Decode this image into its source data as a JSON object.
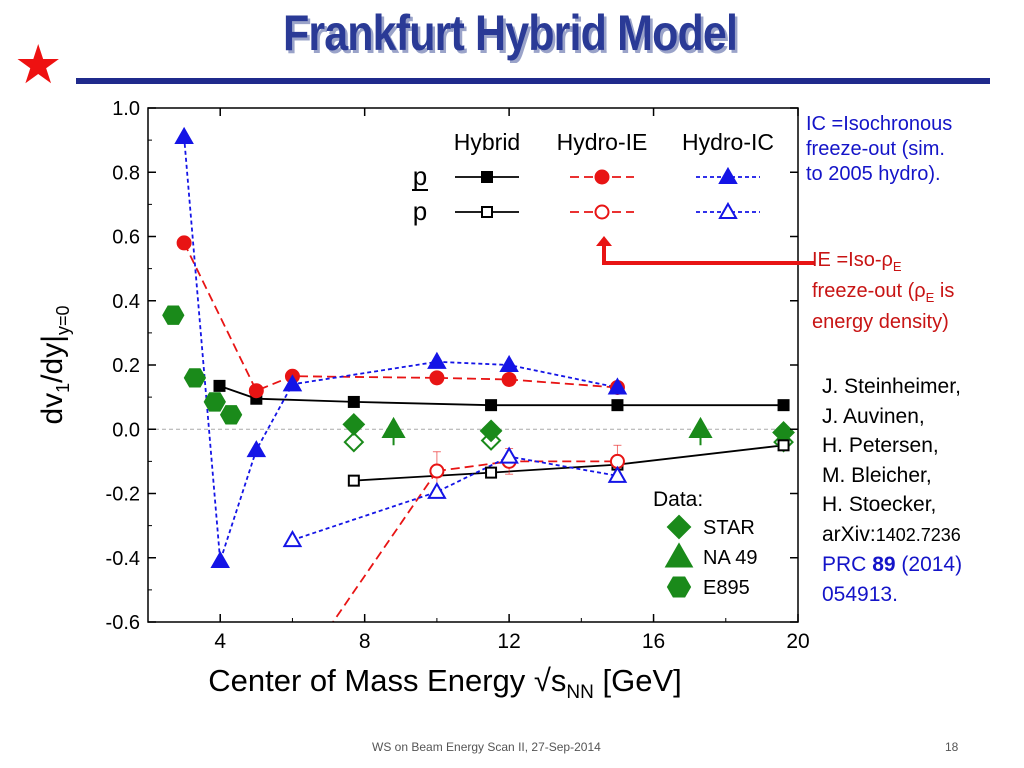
{
  "header": {
    "title": "Frankfurt Hybrid Model"
  },
  "colors": {
    "accent": "#2a3a96",
    "rule": "#1f2a8c",
    "star": "#ee1111",
    "hybrid": "#000000",
    "hydro_ie": "#e81414",
    "hydro_ic": "#1414e6",
    "data": "#1a8a1a"
  },
  "notes": {
    "ic": [
      "IC =Isochronous",
      "freeze-out (sim.",
      "to 2005 hydro)."
    ],
    "ie_line1": "IE =Iso-",
    "ie_rho": "ρ",
    "ie_sub": "E",
    "ie_line2_pre": "freeze-out (",
    "ie_line2_post": " is",
    "ie_line3": "energy density)"
  },
  "authors": {
    "names": [
      "J. Steinheimer,",
      "J. Auvinen,",
      "H. Petersen,",
      "M. Bleicher,",
      "H. Stoecker,"
    ],
    "arxiv_prefix": "arXiv:",
    "arxiv_id": "1402.7236",
    "journal": "PRC",
    "volume": "89",
    "year": "(2014)",
    "page": "054913."
  },
  "footer": {
    "conference": "WS on Beam Energy Scan II, 27-Sep-2014",
    "page_number": "18"
  },
  "chart_data": {
    "type": "scatter",
    "title": "",
    "xlabel": "Center of Mass Energy √s",
    "xlabel_sub": "NN",
    "xlabel_unit": " [GeV]",
    "ylabel": "dv",
    "ylabel_sub1": "1",
    "ylabel_mid": "/dy|",
    "ylabel_sub2": "y=0",
    "xlim": [
      2,
      20
    ],
    "ylim": [
      -0.6,
      1.0
    ],
    "xticks": [
      4,
      8,
      12,
      16,
      20
    ],
    "yticks": [
      1.0,
      0.8,
      0.6,
      0.4,
      0.2,
      0.0,
      -0.2,
      -0.4,
      -0.6
    ],
    "ytick_labels": [
      "1.0",
      "0.8",
      "0.6",
      "0.4",
      "0.2",
      "0.0",
      "-0.2",
      "-0.4",
      "-0.6"
    ],
    "zero_line": true,
    "legend_headers": [
      "Hybrid",
      "Hydro-IE",
      "Hydro-IC"
    ],
    "legend_rows": [
      "p",
      "p"
    ],
    "data_legend_title": "Data:",
    "series": [
      {
        "name": "Hybrid p",
        "group": "hybrid",
        "particle": "p",
        "filled": true,
        "marker": "square",
        "color": "#000000",
        "dash": "solid",
        "x": [
          3.98,
          5,
          7.7,
          11.5,
          15,
          19.6
        ],
        "y": [
          0.135,
          0.095,
          0.085,
          0.075,
          0.075,
          0.075
        ]
      },
      {
        "name": "Hybrid anti-p",
        "group": "hybrid",
        "particle": "pbar",
        "filled": false,
        "marker": "square",
        "color": "#000000",
        "dash": "solid",
        "x": [
          7.7,
          11.5,
          15,
          19.6
        ],
        "y": [
          -0.16,
          -0.135,
          -0.11,
          -0.05
        ]
      },
      {
        "name": "Hydro-IE p",
        "group": "ie",
        "particle": "p",
        "filled": true,
        "marker": "circle",
        "color": "#e81414",
        "dash": "dashed",
        "x": [
          3.0,
          5,
          6.0,
          10,
          12,
          15
        ],
        "y": [
          0.58,
          0.12,
          0.165,
          0.16,
          0.155,
          0.13
        ]
      },
      {
        "name": "Hydro-IE anti-p",
        "group": "ie",
        "particle": "pbar",
        "filled": false,
        "marker": "circle",
        "color": "#e81414",
        "dash": "dashed",
        "x": [
          10,
          12,
          15
        ],
        "y": [
          -0.13,
          -0.1,
          -0.1
        ],
        "yerr": [
          0.06,
          0.04,
          0.05
        ],
        "extension": {
          "x": [
            7.0,
            10
          ],
          "y": [
            -0.62,
            -0.13
          ]
        }
      },
      {
        "name": "Hydro-IC p",
        "group": "ic",
        "particle": "p",
        "filled": true,
        "marker": "triangle",
        "color": "#1414e6",
        "dash": "dotted",
        "x": [
          3.0,
          4.0,
          5,
          6.0,
          10,
          12,
          15
        ],
        "y": [
          0.91,
          -0.41,
          -0.065,
          0.14,
          0.21,
          0.2,
          0.13
        ]
      },
      {
        "name": "Hydro-IC anti-p",
        "group": "ic",
        "particle": "pbar",
        "filled": false,
        "marker": "triangle",
        "color": "#1414e6",
        "dash": "dotted",
        "x": [
          6.0,
          10,
          12,
          15
        ],
        "y": [
          -0.345,
          -0.195,
          -0.085,
          -0.145
        ]
      }
    ],
    "data_series": [
      {
        "name": "STAR",
        "marker": "diamond",
        "color": "#1a8a1a",
        "filled": [
          {
            "x": 7.7,
            "y": 0.015
          },
          {
            "x": 11.5,
            "y": -0.005
          },
          {
            "x": 19.6,
            "y": -0.01
          }
        ],
        "open": [
          {
            "x": 7.7,
            "y": -0.04
          },
          {
            "x": 11.5,
            "y": -0.035
          },
          {
            "x": 19.6,
            "y": -0.04
          }
        ]
      },
      {
        "name": "NA 49",
        "marker": "triangle",
        "color": "#1a8a1a",
        "filled": [
          {
            "x": 8.8,
            "y": 0.0
          },
          {
            "x": 17.3,
            "y": 0.0
          }
        ],
        "open": []
      },
      {
        "name": "E895",
        "marker": "hexagon",
        "color": "#1a8a1a",
        "filled": [
          {
            "x": 2.7,
            "y": 0.355
          },
          {
            "x": 3.3,
            "y": 0.16
          },
          {
            "x": 3.85,
            "y": 0.085
          },
          {
            "x": 4.3,
            "y": 0.045
          }
        ],
        "open": []
      }
    ]
  }
}
